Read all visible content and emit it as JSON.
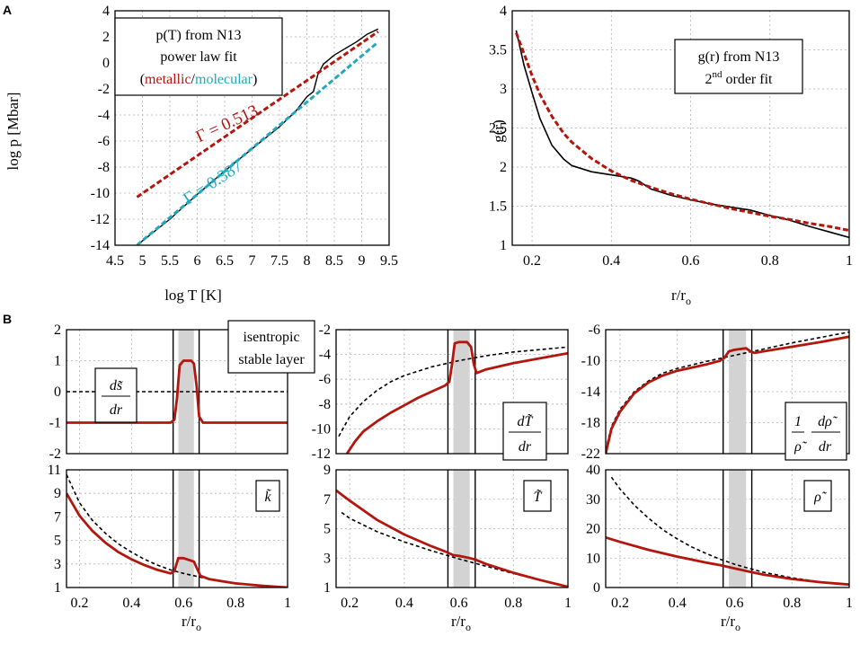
{
  "panel_labels": {
    "a": "A",
    "b": "B"
  },
  "colors": {
    "red": "#b3160f",
    "cyan": "#20a9bd",
    "black": "#000000",
    "grid": "#b0b0b0",
    "shade": "#d3d3d3"
  },
  "legends": {
    "a1": {
      "line1": "p(T) from N13",
      "line2": "power law fit",
      "open": "(",
      "metallic": "metallic",
      "slash": "/",
      "molecular": "molecular",
      "close": ")"
    },
    "a2": {
      "line1": "g(r) from N13",
      "fit_pre": "2",
      "fit_sup": "nd",
      "fit_post": " order fit"
    },
    "b_legend": {
      "line1": "isentropic",
      "line2": "stable layer"
    }
  },
  "labels": {
    "gamma_red": "Γ = 0.513",
    "gamma_cyan": "Γ = 0.387",
    "b1_num": "ds̃",
    "b1_den": "dr",
    "b2_num": "dT̃",
    "b2_den": "dr",
    "b3_one": "1",
    "b3_rho": "ρ̃",
    "b3_num": "dρ̃",
    "b3_den": "dr",
    "b4": "k̃",
    "b5": "T̃",
    "b6": "ρ̃"
  },
  "chart_data": [
    {
      "id": "a1",
      "type": "line",
      "xlabel": "log T [K]",
      "ylabel": "log p [Mbar]",
      "xlim": [
        4.5,
        9.5
      ],
      "ylim": [
        -14,
        4
      ],
      "grid": true,
      "xticks": [
        "4.5",
        "5",
        "5.5",
        "6",
        "6.5",
        "7",
        "7.5",
        "8",
        "8.5",
        "9",
        "9.5"
      ],
      "yticks": [
        "-14",
        "-12",
        "-10",
        "-8",
        "-6",
        "-4",
        "-2",
        "0",
        "2",
        "4"
      ],
      "series": [
        {
          "name": "p(T) from N13",
          "color": "black",
          "dash": false,
          "width": 1.4,
          "x": [
            4.9,
            5.5,
            6.0,
            6.5,
            7.0,
            7.5,
            7.8,
            8.0,
            8.12,
            8.2,
            8.3,
            8.5,
            8.7,
            8.9,
            9.1,
            9.3
          ],
          "y": [
            -14.0,
            -12.0,
            -10.1,
            -8.3,
            -6.6,
            -4.9,
            -3.7,
            -2.6,
            -2.2,
            -0.9,
            -0.1,
            0.6,
            1.1,
            1.6,
            2.2,
            2.6
          ]
        },
        {
          "name": "metallic",
          "color": "red",
          "dash": true,
          "width": 3,
          "x": [
            4.9,
            9.3
          ],
          "y": [
            -10.3,
            2.4
          ]
        },
        {
          "name": "molecular",
          "color": "cyan",
          "dash": true,
          "width": 3,
          "x": [
            4.9,
            9.3
          ],
          "y": [
            -14.0,
            1.6
          ]
        }
      ]
    },
    {
      "id": "a2",
      "type": "line",
      "xlabel": "r/r",
      "xlabel_sub": "o",
      "ylabel": "g(r)",
      "xlim": [
        0.15,
        1.0
      ],
      "ylim": [
        1,
        4
      ],
      "grid": true,
      "xticks": [
        "0.2",
        "0.4",
        "0.6",
        "0.8",
        "1"
      ],
      "yticks": [
        "1",
        "1.5",
        "2",
        "2.5",
        "3",
        "3.5",
        "4"
      ],
      "series": [
        {
          "name": "g(r) from N13",
          "color": "black",
          "dash": false,
          "width": 1.6,
          "x": [
            0.16,
            0.18,
            0.2,
            0.22,
            0.25,
            0.28,
            0.3,
            0.35,
            0.4,
            0.45,
            0.46,
            0.47,
            0.5,
            0.55,
            0.6,
            0.65,
            0.7,
            0.75,
            0.8,
            0.82,
            0.85,
            0.9,
            0.95,
            1.0
          ],
          "y": [
            3.75,
            3.3,
            2.95,
            2.62,
            2.28,
            2.1,
            2.02,
            1.94,
            1.9,
            1.86,
            1.84,
            1.82,
            1.72,
            1.64,
            1.58,
            1.53,
            1.49,
            1.45,
            1.38,
            1.36,
            1.32,
            1.24,
            1.17,
            1.1
          ]
        },
        {
          "name": "2nd order fit",
          "color": "red",
          "dash": true,
          "width": 3,
          "x": [
            0.16,
            0.18,
            0.2,
            0.22,
            0.25,
            0.28,
            0.3,
            0.35,
            0.4,
            0.45,
            0.5,
            0.55,
            0.6,
            0.65,
            0.7,
            0.75,
            0.8,
            0.85,
            0.9,
            0.95,
            1.0
          ],
          "y": [
            3.72,
            3.45,
            3.17,
            2.93,
            2.65,
            2.43,
            2.32,
            2.11,
            1.95,
            1.83,
            1.74,
            1.66,
            1.59,
            1.53,
            1.47,
            1.42,
            1.37,
            1.33,
            1.28,
            1.24,
            1.19
          ]
        }
      ]
    },
    {
      "id": "b1",
      "type": "line",
      "xlim": [
        0.15,
        1.0
      ],
      "ylim": [
        -2,
        2
      ],
      "grid": true,
      "shade_x": [
        0.58,
        0.64
      ],
      "vlines_x": [
        0.56,
        0.66
      ],
      "yticks": [
        "-2",
        "-1",
        "0",
        "1",
        "2"
      ],
      "series": [
        {
          "name": "isentropic",
          "color": "black",
          "dash": true,
          "width": 1.6,
          "x": [
            0.15,
            1.0
          ],
          "y": [
            0,
            0
          ]
        },
        {
          "name": "stable layer",
          "color": "red",
          "dash": false,
          "width": 2.8,
          "x": [
            0.15,
            0.55,
            0.565,
            0.575,
            0.585,
            0.6,
            0.63,
            0.64,
            0.65,
            0.66,
            0.675,
            1.0
          ],
          "y": [
            -1,
            -1,
            -0.9,
            -0.2,
            0.85,
            1.0,
            1.0,
            0.9,
            0.2,
            -0.8,
            -1.0,
            -1.0
          ]
        }
      ]
    },
    {
      "id": "b2",
      "type": "line",
      "xlim": [
        0.15,
        1.0
      ],
      "ylim": [
        -12,
        -2
      ],
      "grid": true,
      "shade_x": [
        0.58,
        0.64
      ],
      "vlines_x": [
        0.56,
        0.66
      ],
      "yticks": [
        "-12",
        "-10",
        "-8",
        "-6",
        "-4",
        "-2"
      ],
      "series": [
        {
          "name": "isentropic",
          "color": "black",
          "dash": true,
          "width": 1.6,
          "x": [
            0.16,
            0.18,
            0.2,
            0.25,
            0.3,
            0.35,
            0.4,
            0.5,
            0.6,
            0.7,
            0.8,
            0.9,
            1.0
          ],
          "y": [
            -10.6,
            -9.8,
            -9.0,
            -7.8,
            -6.9,
            -6.2,
            -5.7,
            -5.0,
            -4.5,
            -4.1,
            -3.8,
            -3.6,
            -3.4
          ]
        },
        {
          "name": "stable layer",
          "color": "red",
          "dash": false,
          "width": 2.8,
          "x": [
            0.19,
            0.22,
            0.25,
            0.3,
            0.35,
            0.4,
            0.45,
            0.5,
            0.55,
            0.565,
            0.575,
            0.585,
            0.6,
            0.63,
            0.645,
            0.655,
            0.665,
            0.7,
            0.8,
            0.9,
            1.0
          ],
          "y": [
            -12,
            -11.0,
            -10.2,
            -9.4,
            -8.7,
            -8.1,
            -7.5,
            -7.0,
            -6.5,
            -6.2,
            -4.8,
            -3.1,
            -3.0,
            -3.0,
            -3.4,
            -4.8,
            -5.5,
            -5.2,
            -4.7,
            -4.3,
            -3.9
          ]
        }
      ]
    },
    {
      "id": "b3",
      "type": "line",
      "xlim": [
        0.15,
        1.0
      ],
      "ylim": [
        -22,
        -6
      ],
      "grid": true,
      "shade_x": [
        0.58,
        0.64
      ],
      "vlines_x": [
        0.56,
        0.66
      ],
      "yticks": [
        "-22",
        "-18",
        "-14",
        "-10",
        "-6"
      ],
      "series": [
        {
          "name": "isentropic",
          "color": "black",
          "dash": true,
          "width": 1.6,
          "x": [
            0.15,
            0.17,
            0.2,
            0.25,
            0.3,
            0.35,
            0.4,
            0.5,
            0.6,
            0.7,
            0.8,
            0.9,
            1.0
          ],
          "y": [
            -21.5,
            -18.5,
            -16.3,
            -14.0,
            -12.6,
            -11.6,
            -11.0,
            -10.1,
            -9.3,
            -8.5,
            -7.7,
            -7.0,
            -6.3
          ]
        },
        {
          "name": "stable layer",
          "color": "red",
          "dash": false,
          "width": 2.8,
          "x": [
            0.15,
            0.17,
            0.2,
            0.25,
            0.3,
            0.35,
            0.4,
            0.5,
            0.55,
            0.565,
            0.58,
            0.6,
            0.64,
            0.655,
            0.67,
            0.7,
            0.8,
            0.9,
            1.0
          ],
          "y": [
            -22,
            -18.8,
            -16.6,
            -14.2,
            -12.8,
            -11.9,
            -11.3,
            -10.5,
            -10.0,
            -9.6,
            -8.8,
            -8.6,
            -8.4,
            -8.8,
            -9.0,
            -8.8,
            -8.2,
            -7.6,
            -6.9
          ]
        }
      ]
    },
    {
      "id": "b4",
      "type": "line",
      "xlabel": "r/r",
      "xlabel_sub": "o",
      "xlim": [
        0.15,
        1.0
      ],
      "ylim": [
        1,
        11
      ],
      "grid": true,
      "shade_x": [
        0.58,
        0.64
      ],
      "vlines_x": [
        0.56,
        0.66
      ],
      "xticks": [
        "0.2",
        "0.4",
        "0.6",
        "0.8",
        "1"
      ],
      "yticks": [
        "1",
        "3",
        "5",
        "7",
        "9",
        "11"
      ],
      "series": [
        {
          "name": "isentropic",
          "color": "black",
          "dash": true,
          "width": 1.6,
          "x": [
            0.15,
            0.2,
            0.25,
            0.3,
            0.35,
            0.4,
            0.45,
            0.5,
            0.55,
            0.6,
            0.7,
            0.8,
            0.9,
            1.0
          ],
          "y": [
            10.6,
            8.2,
            6.7,
            5.6,
            4.7,
            4.0,
            3.4,
            2.9,
            2.5,
            2.2,
            1.7,
            1.35,
            1.15,
            1.0
          ]
        },
        {
          "name": "stable layer",
          "color": "red",
          "dash": false,
          "width": 2.8,
          "x": [
            0.15,
            0.2,
            0.25,
            0.3,
            0.35,
            0.4,
            0.45,
            0.5,
            0.55,
            0.565,
            0.58,
            0.6,
            0.64,
            0.65,
            0.665,
            0.7,
            0.8,
            0.9,
            1.0
          ],
          "y": [
            9.0,
            7.1,
            5.8,
            4.8,
            4.0,
            3.4,
            2.9,
            2.5,
            2.2,
            2.4,
            3.5,
            3.5,
            3.2,
            2.7,
            2.0,
            1.7,
            1.35,
            1.15,
            1.0
          ]
        }
      ]
    },
    {
      "id": "b5",
      "type": "line",
      "xlabel": "r/r",
      "xlabel_sub": "o",
      "xlim": [
        0.15,
        1.0
      ],
      "ylim": [
        1,
        9
      ],
      "grid": true,
      "shade_x": [
        0.58,
        0.64
      ],
      "vlines_x": [
        0.56,
        0.66
      ],
      "xticks": [
        "0.2",
        "0.4",
        "0.6",
        "0.8",
        "1"
      ],
      "yticks": [
        "1",
        "3",
        "5",
        "7",
        "9"
      ],
      "series": [
        {
          "name": "isentropic",
          "color": "black",
          "dash": true,
          "width": 1.6,
          "x": [
            0.17,
            0.2,
            0.3,
            0.4,
            0.5,
            0.6,
            0.7,
            0.8,
            0.9,
            1.0
          ],
          "y": [
            6.1,
            5.7,
            4.8,
            4.1,
            3.5,
            2.95,
            2.45,
            1.95,
            1.5,
            1.05
          ]
        },
        {
          "name": "stable layer",
          "color": "red",
          "dash": false,
          "width": 2.8,
          "x": [
            0.15,
            0.2,
            0.3,
            0.4,
            0.5,
            0.55,
            0.58,
            0.6,
            0.64,
            0.66,
            0.7,
            0.8,
            0.9,
            1.0
          ],
          "y": [
            7.6,
            6.9,
            5.6,
            4.6,
            3.8,
            3.45,
            3.2,
            3.15,
            3.0,
            2.9,
            2.6,
            2.0,
            1.5,
            1.05
          ]
        }
      ]
    },
    {
      "id": "b6",
      "type": "line",
      "xlabel": "r/r",
      "xlabel_sub": "o",
      "xlim": [
        0.15,
        1.0
      ],
      "ylim": [
        0,
        40
      ],
      "grid": true,
      "shade_x": [
        0.58,
        0.64
      ],
      "vlines_x": [
        0.56,
        0.66
      ],
      "xticks": [
        "0.2",
        "0.4",
        "0.6",
        "0.8",
        "1"
      ],
      "yticks": [
        "0",
        "10",
        "20",
        "30",
        "40"
      ],
      "series": [
        {
          "name": "isentropic",
          "color": "black",
          "dash": true,
          "width": 1.6,
          "x": [
            0.17,
            0.2,
            0.25,
            0.3,
            0.35,
            0.4,
            0.45,
            0.5,
            0.55,
            0.6,
            0.65,
            0.7,
            0.8,
            0.9,
            1.0
          ],
          "y": [
            37.5,
            33.5,
            28.0,
            23.5,
            19.6,
            16.5,
            13.8,
            11.6,
            9.6,
            7.9,
            6.5,
            5.2,
            3.3,
            1.9,
            1.0
          ]
        },
        {
          "name": "stable layer",
          "color": "red",
          "dash": false,
          "width": 2.8,
          "x": [
            0.15,
            0.2,
            0.3,
            0.4,
            0.5,
            0.55,
            0.6,
            0.65,
            0.7,
            0.8,
            0.9,
            1.0
          ],
          "y": [
            17.0,
            15.5,
            12.8,
            10.5,
            8.5,
            7.6,
            6.5,
            5.4,
            4.4,
            2.9,
            1.8,
            1.0
          ]
        }
      ]
    }
  ]
}
